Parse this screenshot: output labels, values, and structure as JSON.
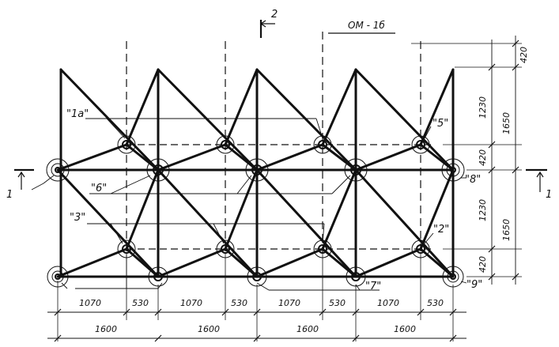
{
  "title": "ОМ - 1б",
  "section_markers": {
    "top": "2",
    "left": "1",
    "right": "1"
  },
  "node_labels": {
    "n1a": "\"1а\"",
    "n5": "\"5\"",
    "n6": "\"6\"",
    "n8": "\"8\"",
    "n3": "\"3\"",
    "n2": "\"2\"",
    "n7": "\"7\"",
    "n9": "\"9\""
  },
  "bottom_dims_row1": [
    "1070",
    "530",
    "1070",
    "530",
    "1070",
    "530",
    "1070",
    "530"
  ],
  "bottom_dims_row2": [
    "1600",
    "1600",
    "1600",
    "1600"
  ],
  "right_dims_inner": [
    "420",
    "1230",
    "420",
    "1230",
    "420"
  ],
  "right_dims_outer": [
    "1650",
    "1650"
  ]
}
